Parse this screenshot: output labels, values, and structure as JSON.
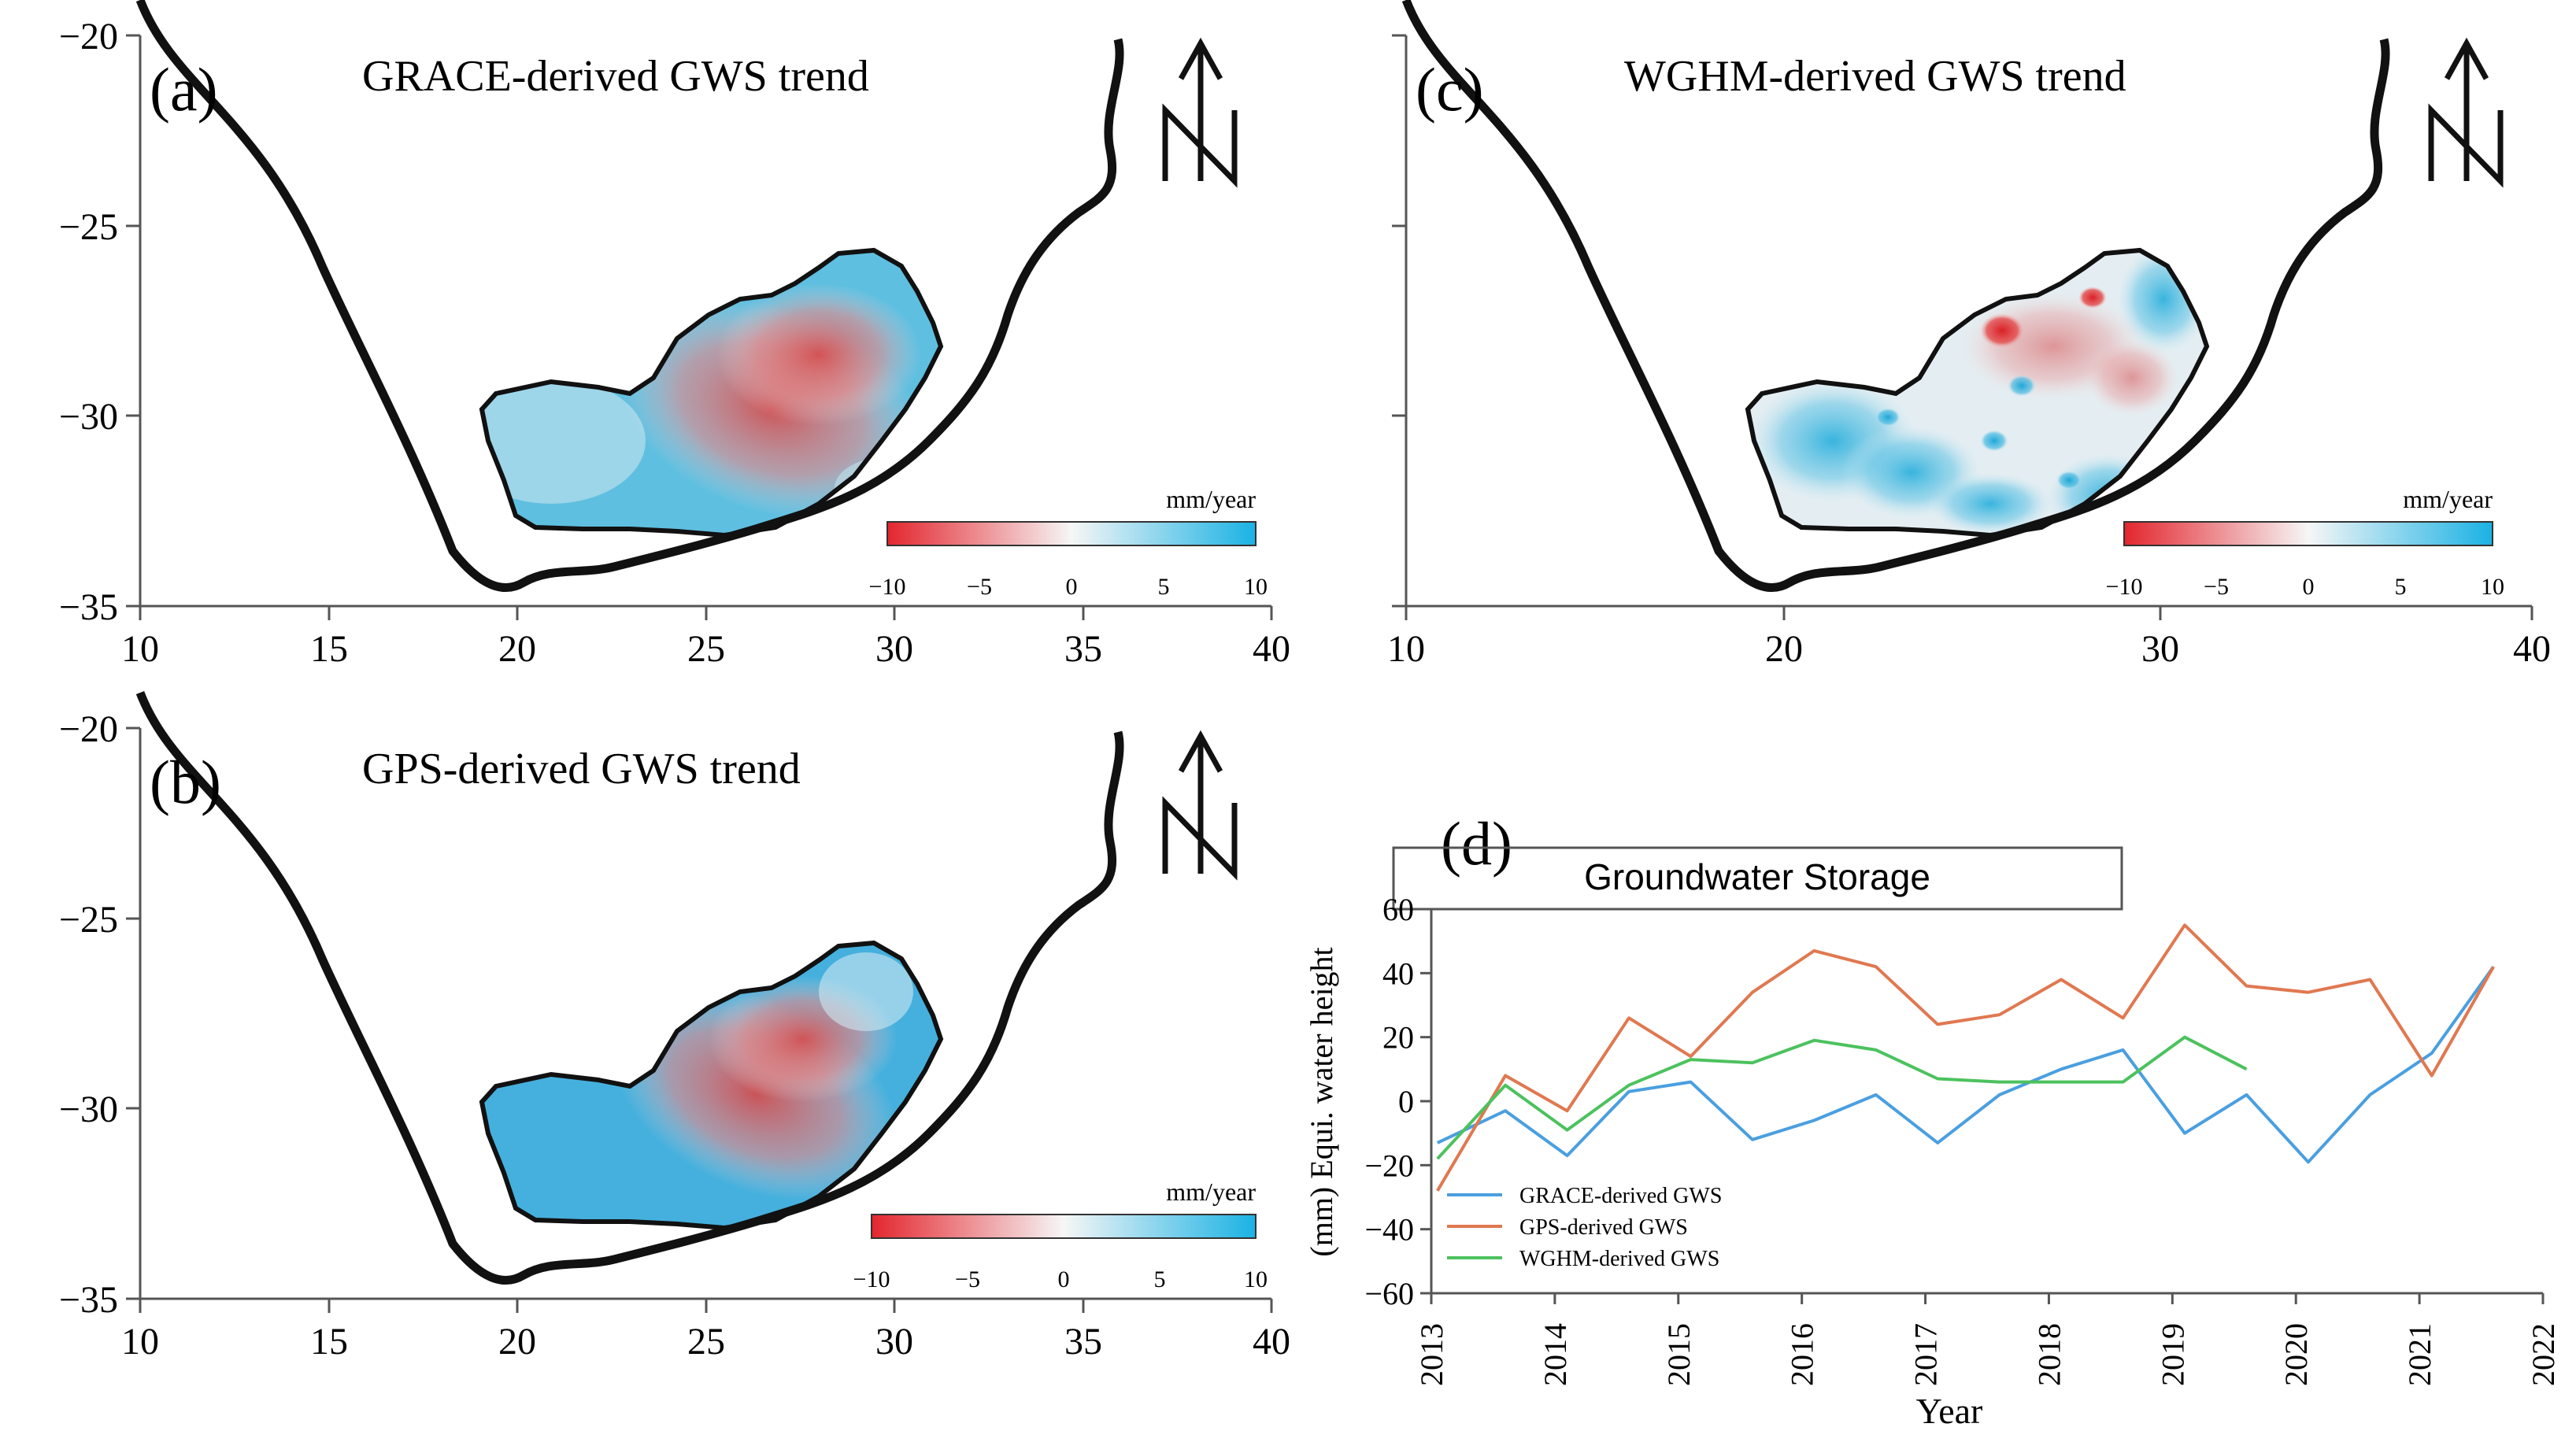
{
  "chart_data": [
    {
      "type": "heatmap",
      "panel_label": "(a)",
      "title": "GRACE-derived GWS trend",
      "x_ticks": [
        "10",
        "15",
        "20",
        "25",
        "30",
        "35",
        "40"
      ],
      "y_ticks": [
        "−20",
        "−25",
        "−30",
        "−35"
      ],
      "xlim": [
        10,
        40
      ],
      "ylim": [
        -35,
        -20
      ],
      "colorbar": {
        "unit": "mm/year",
        "ticks": [
          "−10",
          "−5",
          "0",
          "5",
          "10"
        ],
        "range": [
          -10,
          10
        ]
      }
    },
    {
      "type": "heatmap",
      "panel_label": "(b)",
      "title": "GPS-derived GWS trend",
      "x_ticks": [
        "10",
        "15",
        "20",
        "25",
        "30",
        "35",
        "40"
      ],
      "y_ticks": [
        "−20",
        "−25",
        "−30",
        "−35"
      ],
      "xlim": [
        10,
        40
      ],
      "ylim": [
        -35,
        -20
      ],
      "colorbar": {
        "unit": "mm/year",
        "ticks": [
          "−10",
          "−5",
          "0",
          "5",
          "10"
        ],
        "range": [
          -10,
          10
        ]
      }
    },
    {
      "type": "heatmap",
      "panel_label": "(c)",
      "title": "WGHM-derived GWS trend",
      "x_ticks": [
        "10",
        "20",
        "30",
        "40"
      ],
      "y_ticks": [],
      "xlim": [
        10,
        40
      ],
      "ylim": [
        -35,
        -20
      ],
      "colorbar": {
        "unit": "mm/year",
        "ticks": [
          "−10",
          "−5",
          "0",
          "5",
          "10"
        ],
        "range": [
          -10,
          10
        ]
      }
    },
    {
      "type": "line",
      "panel_label": "(d)",
      "title": "Groundwater Storage",
      "xlabel": "Year",
      "ylabel": "(mm) Equi. water height",
      "xlim": [
        2013,
        2022
      ],
      "ylim": [
        -60,
        60
      ],
      "x_ticks": [
        "2013",
        "2014",
        "2015",
        "2016",
        "2017",
        "2018",
        "2019",
        "2020",
        "2021",
        "2022"
      ],
      "y_ticks": [
        "60",
        "40",
        "20",
        "0",
        "−20",
        "−40",
        "−60"
      ],
      "series": [
        {
          "name": "GRACE-derived GWS",
          "color": "#4a9fe0",
          "x": [
            2013.05,
            2013.6,
            2014.1,
            2014.6,
            2015.1,
            2015.6,
            2016.1,
            2016.6,
            2017.1,
            2017.6,
            2018.1,
            2018.6,
            2019.1,
            2019.6,
            2020.1,
            2020.6,
            2021.1,
            2021.6
          ],
          "y": [
            -13,
            -3,
            -17,
            3,
            6,
            -12,
            -6,
            2,
            -13,
            2,
            10,
            16,
            -10,
            2,
            -19,
            2,
            15,
            42
          ]
        },
        {
          "name": "GPS-derived GWS",
          "color": "#e07850",
          "x": [
            2013.05,
            2013.6,
            2014.1,
            2014.6,
            2015.1,
            2015.6,
            2016.1,
            2016.6,
            2017.1,
            2017.6,
            2018.1,
            2018.6,
            2019.1,
            2019.6,
            2020.1,
            2020.6,
            2021.1,
            2021.6
          ],
          "y": [
            -28,
            8,
            -3,
            26,
            14,
            34,
            47,
            42,
            24,
            27,
            38,
            26,
            55,
            36,
            34,
            38,
            8,
            42
          ]
        },
        {
          "name": "WGHM-derived GWS",
          "color": "#4cc25e",
          "x": [
            2013.05,
            2013.6,
            2014.1,
            2014.6,
            2015.1,
            2015.6,
            2016.1,
            2016.6,
            2017.1,
            2017.6,
            2018.1,
            2018.6,
            2019.1,
            2019.6
          ],
          "y": [
            -18,
            5,
            -9,
            5,
            13,
            12,
            19,
            16,
            7,
            6,
            6,
            6,
            20,
            10
          ]
        }
      ]
    }
  ],
  "north_arrow": "N"
}
